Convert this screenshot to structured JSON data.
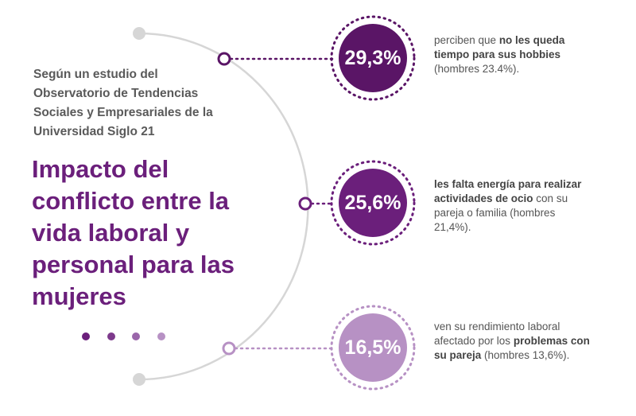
{
  "intro": "Según un estudio del Observatorio de Tendencias Sociales y Empresariales de la Universidad Siglo 21",
  "headline": "Impacto del conflicto entre la vida laboral y personal para las mujeres",
  "colors": {
    "primary": "#6b1f7b",
    "primary_dark": "#5a1566",
    "light": "#b791c4",
    "arc": "#d6d6d6",
    "text": "#555555"
  },
  "stats": [
    {
      "value": "29,3%",
      "color": "#5a1566",
      "desc_pre": "perciben que ",
      "desc_bold": "no les queda tiempo para sus hobbies",
      "desc_post": " (hombres 23.4%)."
    },
    {
      "value": "25,6%",
      "color": "#6b1f7b",
      "desc_pre": "",
      "desc_bold": "les falta energía para realizar actividades de ocio",
      "desc_post": " con su pareja o familia (hombres 21,4%)."
    },
    {
      "value": "16,5%",
      "color": "#b791c4",
      "desc_pre": "ven su rendimiento laboral afectado por los ",
      "desc_bold": "problemas con su pareja",
      "desc_post": " (hombres 13,6%)."
    }
  ],
  "dot_colors": [
    "#6b1f7b",
    "#7d3a8c",
    "#9a66aa",
    "#b791c4"
  ]
}
